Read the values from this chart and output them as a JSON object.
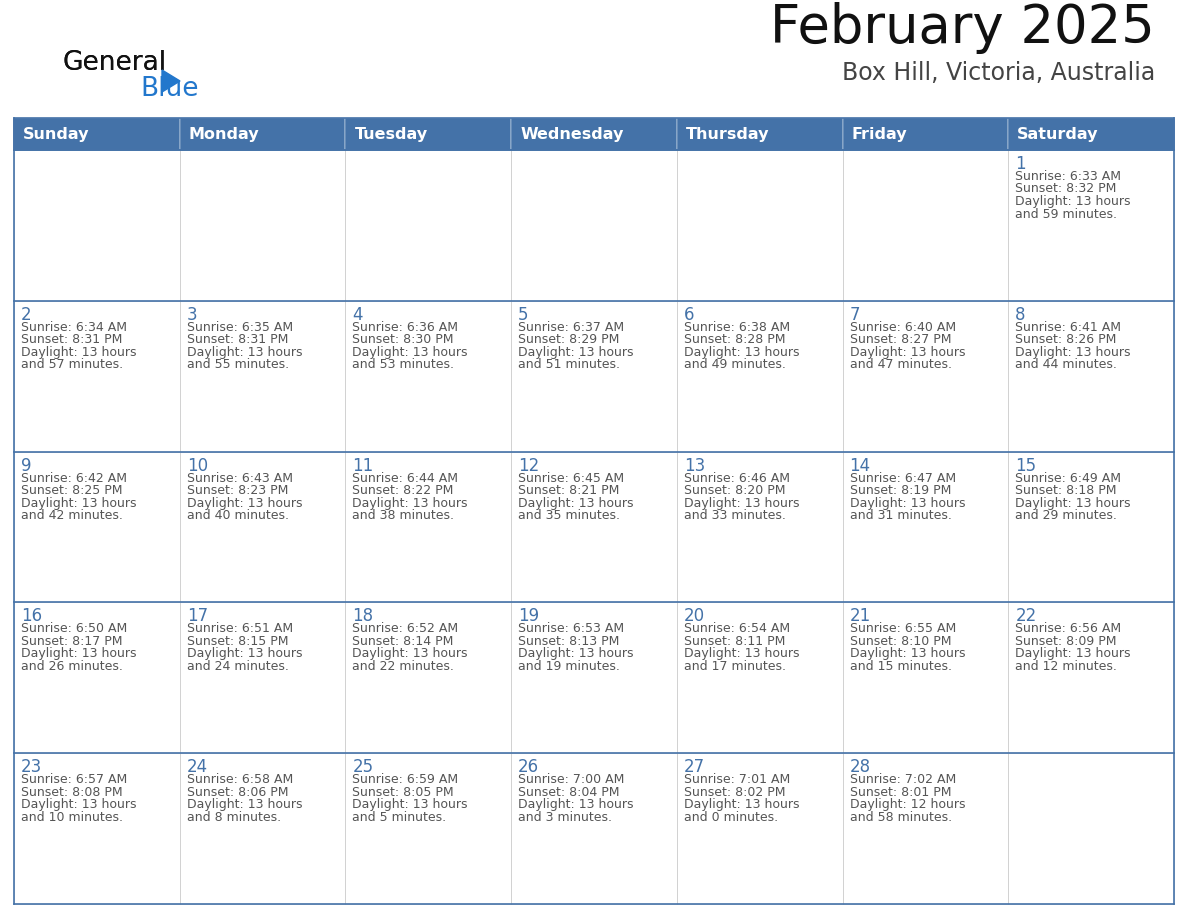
{
  "title": "February 2025",
  "subtitle": "Box Hill, Victoria, Australia",
  "days_of_week": [
    "Sunday",
    "Monday",
    "Tuesday",
    "Wednesday",
    "Thursday",
    "Friday",
    "Saturday"
  ],
  "header_bg": "#4472A8",
  "header_text": "#FFFFFF",
  "cell_bg_white": "#FFFFFF",
  "cell_bg_light": "#F0F4F8",
  "border_color": "#4472A8",
  "row_divider_color": "#4472A8",
  "day_num_color": "#4472A8",
  "text_color": "#555555",
  "calendar_data": [
    [
      null,
      null,
      null,
      null,
      null,
      null,
      1
    ],
    [
      2,
      3,
      4,
      5,
      6,
      7,
      8
    ],
    [
      9,
      10,
      11,
      12,
      13,
      14,
      15
    ],
    [
      16,
      17,
      18,
      19,
      20,
      21,
      22
    ],
    [
      23,
      24,
      25,
      26,
      27,
      28,
      null
    ]
  ],
  "sunrise_data": {
    "1": "6:33 AM",
    "2": "6:34 AM",
    "3": "6:35 AM",
    "4": "6:36 AM",
    "5": "6:37 AM",
    "6": "6:38 AM",
    "7": "6:40 AM",
    "8": "6:41 AM",
    "9": "6:42 AM",
    "10": "6:43 AM",
    "11": "6:44 AM",
    "12": "6:45 AM",
    "13": "6:46 AM",
    "14": "6:47 AM",
    "15": "6:49 AM",
    "16": "6:50 AM",
    "17": "6:51 AM",
    "18": "6:52 AM",
    "19": "6:53 AM",
    "20": "6:54 AM",
    "21": "6:55 AM",
    "22": "6:56 AM",
    "23": "6:57 AM",
    "24": "6:58 AM",
    "25": "6:59 AM",
    "26": "7:00 AM",
    "27": "7:01 AM",
    "28": "7:02 AM"
  },
  "sunset_data": {
    "1": "8:32 PM",
    "2": "8:31 PM",
    "3": "8:31 PM",
    "4": "8:30 PM",
    "5": "8:29 PM",
    "6": "8:28 PM",
    "7": "8:27 PM",
    "8": "8:26 PM",
    "9": "8:25 PM",
    "10": "8:23 PM",
    "11": "8:22 PM",
    "12": "8:21 PM",
    "13": "8:20 PM",
    "14": "8:19 PM",
    "15": "8:18 PM",
    "16": "8:17 PM",
    "17": "8:15 PM",
    "18": "8:14 PM",
    "19": "8:13 PM",
    "20": "8:11 PM",
    "21": "8:10 PM",
    "22": "8:09 PM",
    "23": "8:08 PM",
    "24": "8:06 PM",
    "25": "8:05 PM",
    "26": "8:04 PM",
    "27": "8:02 PM",
    "28": "8:01 PM"
  },
  "daylight_hours": {
    "1": "13",
    "2": "13",
    "3": "13",
    "4": "13",
    "5": "13",
    "6": "13",
    "7": "13",
    "8": "13",
    "9": "13",
    "10": "13",
    "11": "13",
    "12": "13",
    "13": "13",
    "14": "13",
    "15": "13",
    "16": "13",
    "17": "13",
    "18": "13",
    "19": "13",
    "20": "13",
    "21": "13",
    "22": "13",
    "23": "13",
    "24": "13",
    "25": "13",
    "26": "13",
    "27": "13",
    "28": "12"
  },
  "daylight_minutes": {
    "1": "59",
    "2": "57",
    "3": "55",
    "4": "53",
    "5": "51",
    "6": "49",
    "7": "47",
    "8": "44",
    "9": "42",
    "10": "40",
    "11": "38",
    "12": "35",
    "13": "33",
    "14": "31",
    "15": "29",
    "16": "26",
    "17": "24",
    "18": "22",
    "19": "19",
    "20": "17",
    "21": "15",
    "22": "12",
    "23": "10",
    "24": "8",
    "25": "5",
    "26": "3",
    "27": "0",
    "28": "58"
  },
  "logo_color_general": "#111111",
  "logo_color_blue": "#2277CC",
  "logo_triangle_color": "#2277CC"
}
